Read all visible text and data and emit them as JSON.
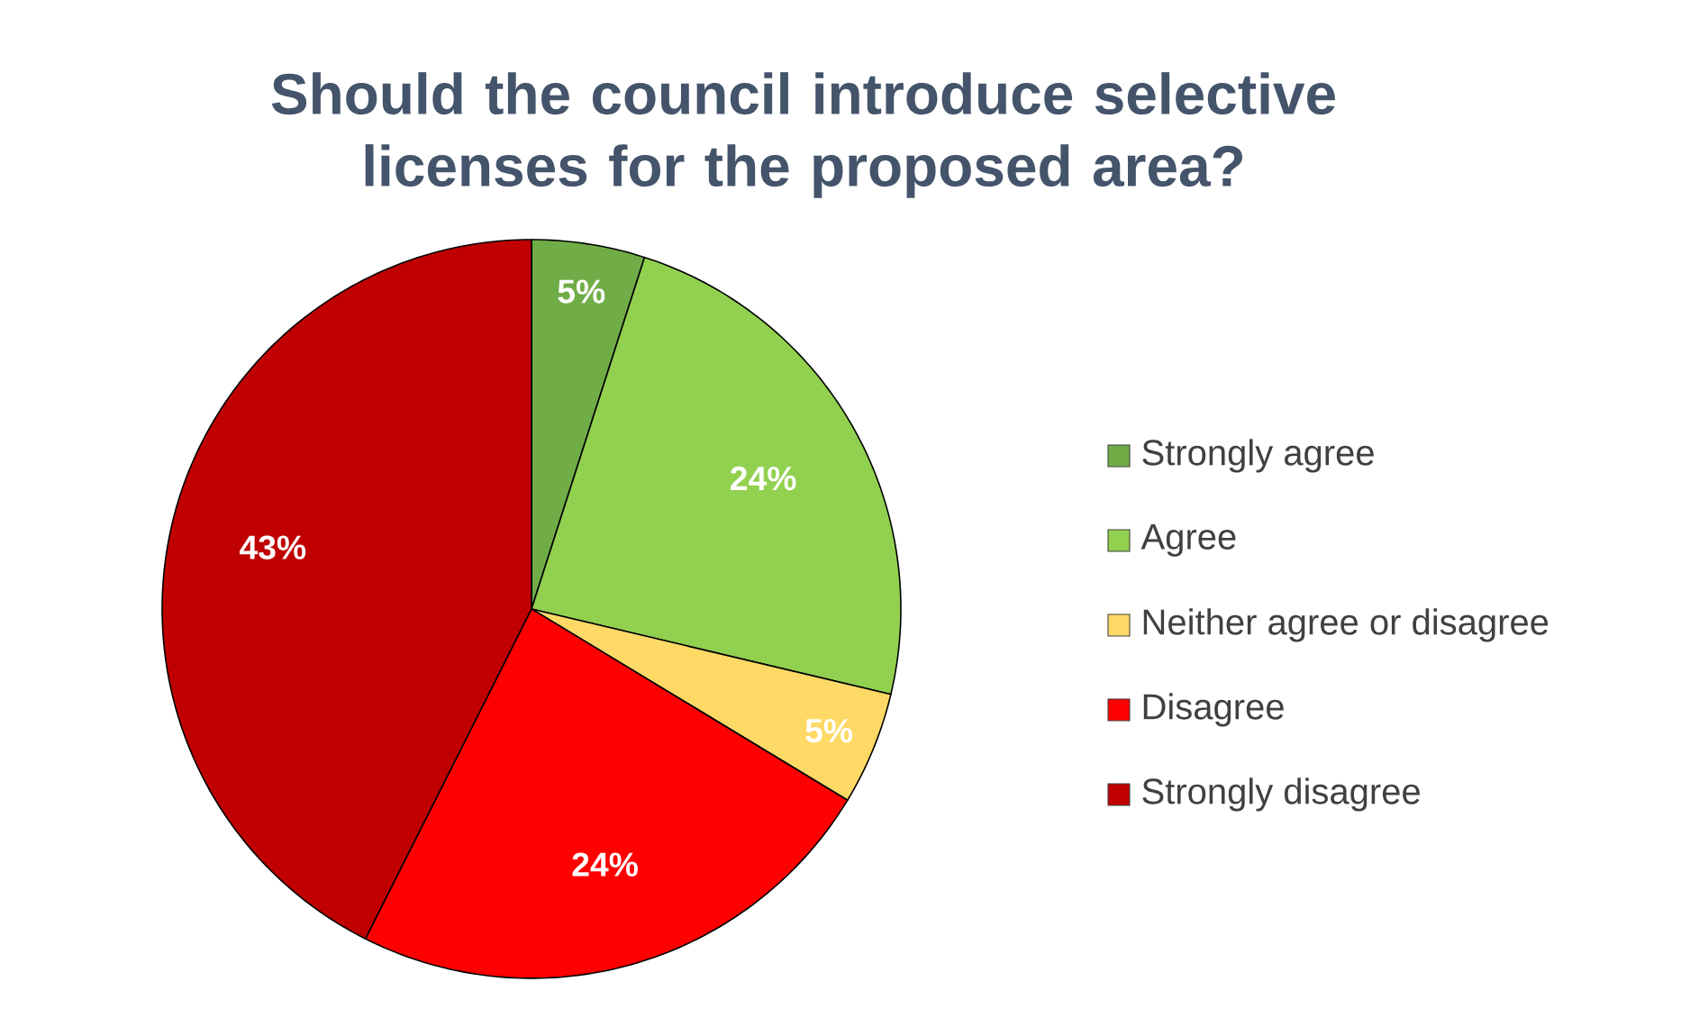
{
  "chart_data": {
    "type": "pie",
    "title": "Should the council introduce selective licenses for the proposed area?",
    "categories": [
      "Strongly agree",
      "Agree",
      "Neither agree or disagree",
      "Disagree",
      "Strongly disagree"
    ],
    "values": [
      5,
      24,
      5,
      24,
      43
    ],
    "value_labels": [
      "5%",
      "24%",
      "5%",
      "24%",
      "43%"
    ],
    "colors": [
      "#70ad47",
      "#92d050",
      "#ffd966",
      "#ff0000",
      "#c00000"
    ],
    "legend": "right"
  }
}
